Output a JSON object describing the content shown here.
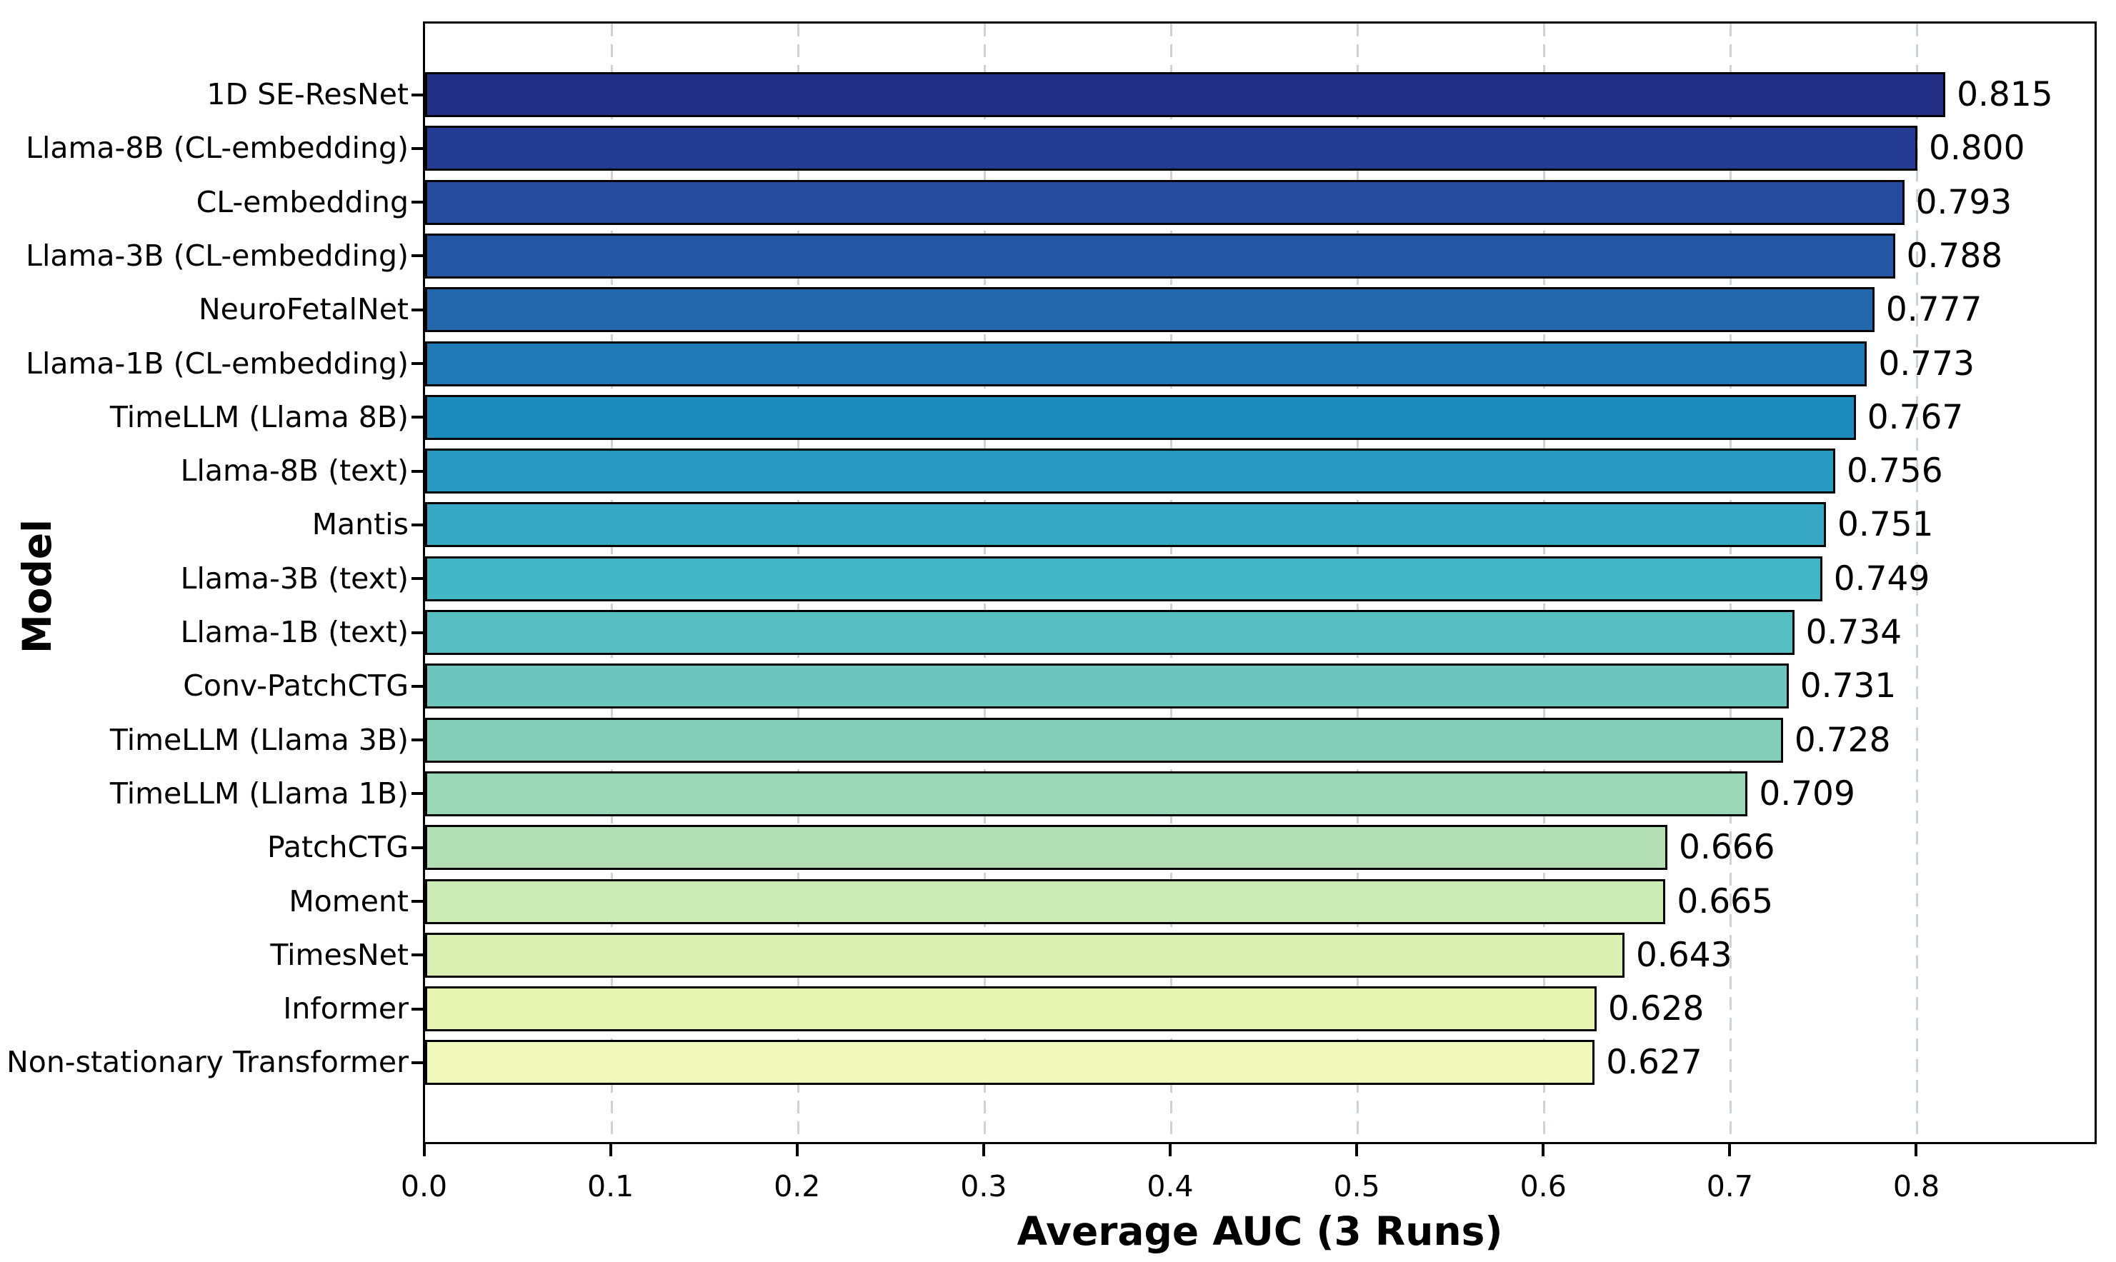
{
  "chart_data": {
    "type": "bar",
    "orientation": "horizontal",
    "title": "",
    "xlabel": "Average AUC (3 Runs)",
    "ylabel": "Model",
    "xlim": [
      0,
      0.895
    ],
    "xticks": [
      "0.0",
      "0.1",
      "0.2",
      "0.3",
      "0.4",
      "0.5",
      "0.6",
      "0.7",
      "0.8"
    ],
    "grid": "vertical-dashed",
    "grid_color": "#cfd3d8",
    "bar_edge_color": "#000000",
    "categories": [
      "1D SE-ResNet",
      "Llama-8B (CL-embedding)",
      "CL-embedding",
      "Llama-3B (CL-embedding)",
      "NeuroFetalNet",
      "Llama-1B (CL-embedding)",
      "TimeLLM (Llama 8B)",
      "Llama-8B (text)",
      "Mantis",
      "Llama-3B (text)",
      "Llama-1B (text)",
      "Conv-PatchCTG",
      "TimeLLM (Llama 3B)",
      "TimeLLM (Llama 1B)",
      "PatchCTG",
      "Moment",
      "TimesNet",
      "Informer",
      "Non-stationary Transformer"
    ],
    "values": [
      0.815,
      0.8,
      0.793,
      0.788,
      0.777,
      0.773,
      0.767,
      0.756,
      0.751,
      0.749,
      0.734,
      0.731,
      0.728,
      0.709,
      0.666,
      0.665,
      0.643,
      0.628,
      0.627
    ],
    "value_labels": [
      "0.815",
      "0.800",
      "0.793",
      "0.788",
      "0.777",
      "0.773",
      "0.767",
      "0.756",
      "0.751",
      "0.749",
      "0.734",
      "0.731",
      "0.728",
      "0.709",
      "0.666",
      "0.665",
      "0.643",
      "0.628",
      "0.627"
    ],
    "bar_colors": [
      "#232F84",
      "#253C95",
      "#264A9E",
      "#2458A5",
      "#2267AC",
      "#1F79B4",
      "#1E8BBD",
      "#2899C1",
      "#37A8C4",
      "#41B6C4",
      "#57BEC1",
      "#6DC6BE",
      "#83CEB9",
      "#9AD7B6",
      "#B2E0B4",
      "#CCEBB4",
      "#DAF0B3",
      "#E7F5B1",
      "#F0F9B9"
    ]
  }
}
